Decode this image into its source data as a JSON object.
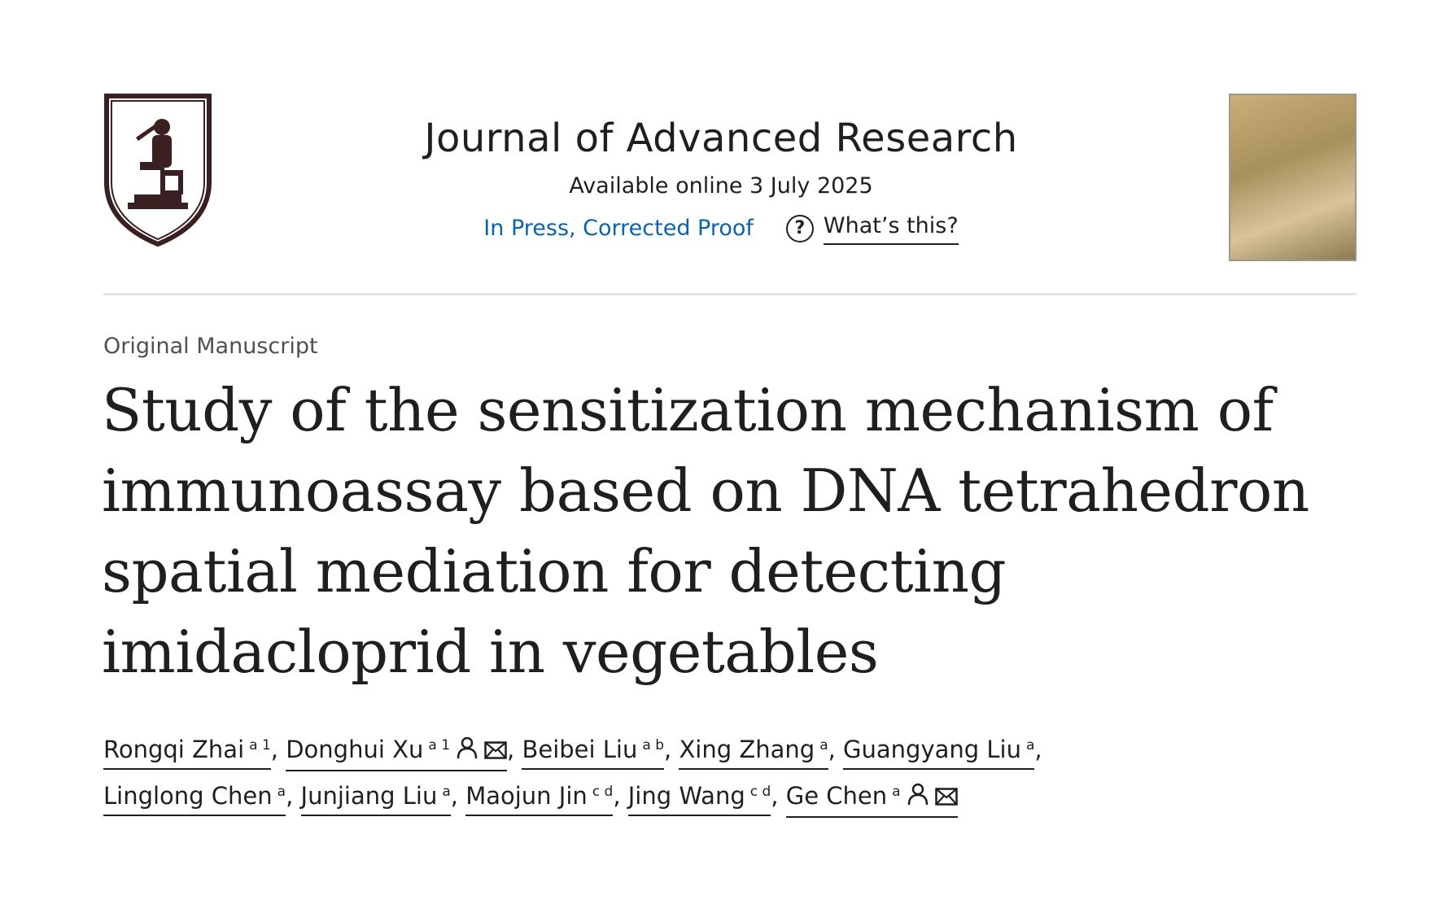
{
  "header": {
    "journal_title": "Journal of Advanced Research",
    "available": "Available online 3 July 2025",
    "status": "In Press, Corrected Proof",
    "whats_this": "What’s this?",
    "logo": "university-seal-logo",
    "cover": "journal-cover-thumbnail"
  },
  "article": {
    "type": "Original Manuscript",
    "title": "Study of the sensitization mechanism of immunoassay based on DNA tetrahedron spatial mediation for detecting imidacloprid in vegetables",
    "authors": [
      {
        "name": "Rongqi Zhai",
        "aff": "a 1"
      },
      {
        "name": "Donghui Xu",
        "aff": "a 1",
        "icons": [
          "person-icon",
          "mail-icon"
        ]
      },
      {
        "name": "Beibei Liu",
        "aff": "a b"
      },
      {
        "name": "Xing Zhang",
        "aff": "a"
      },
      {
        "name": "Guangyang Liu",
        "aff": "a"
      },
      {
        "name": "Linglong Chen",
        "aff": "a"
      },
      {
        "name": "Junjiang Liu",
        "aff": "a"
      },
      {
        "name": "Maojun Jin",
        "aff": "c d"
      },
      {
        "name": "Jing Wang",
        "aff": "c d"
      },
      {
        "name": "Ge Chen",
        "aff": "a",
        "icons": [
          "person-icon",
          "mail-icon"
        ]
      }
    ]
  },
  "colors": {
    "link": "#0c63a8",
    "text": "#1f1f1f",
    "divider": "#e6e6e6"
  }
}
